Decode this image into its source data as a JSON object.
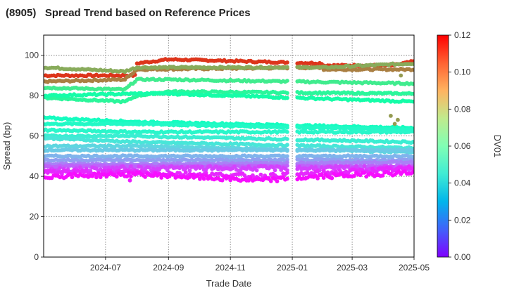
{
  "chart_data": {
    "type": "scatter",
    "title": "(8905)   Spread Trend based on Reference Prices",
    "xlabel": "Trade Date",
    "ylabel": "Spread (bp)",
    "colorbar_label": "DV01",
    "x_range": [
      "2024-05-01",
      "2025-05-01"
    ],
    "ylim": [
      0,
      110
    ],
    "y_ticks": [
      0,
      20,
      40,
      60,
      80,
      100
    ],
    "x_ticks": [
      "2024-07",
      "2024-09",
      "2024-11",
      "2025-01",
      "2025-03",
      "2025-05"
    ],
    "colorbar_range": [
      0.0,
      0.12
    ],
    "colorbar_ticks": [
      "0.00",
      "0.02",
      "0.04",
      "0.06",
      "0.08",
      "0.10",
      "0.12"
    ],
    "colormap": "rainbow",
    "grid": true,
    "gaps": [
      [
        "2024-12-29",
        "2025-01-05"
      ]
    ],
    "series": [
      {
        "dv01": 0.112,
        "points": [
          [
            "2024-05-01",
            90
          ],
          [
            "2024-07-31",
            90
          ],
          [
            "2024-08-01",
            96
          ],
          [
            "2024-09-01",
            98
          ],
          [
            "2025-01-31",
            96
          ],
          [
            "2025-02-01",
            95
          ],
          [
            "2025-04-10",
            95
          ],
          [
            "2025-05-01",
            97
          ]
        ]
      },
      {
        "dv01": 0.1,
        "points": [
          [
            "2024-05-01",
            87
          ],
          [
            "2024-07-20",
            88
          ],
          [
            "2024-08-01",
            93
          ],
          [
            "2025-01-31",
            94
          ],
          [
            "2025-02-01",
            93
          ],
          [
            "2025-05-01",
            93
          ]
        ]
      },
      {
        "dv01": 0.092,
        "points": [
          [
            "2024-05-01",
            94
          ],
          [
            "2024-07-20",
            92
          ],
          [
            "2024-08-01",
            94
          ],
          [
            "2025-02-01",
            94
          ],
          [
            "2025-05-01",
            96
          ]
        ]
      },
      {
        "dv01": 0.075,
        "points": [
          [
            "2024-05-01",
            84
          ],
          [
            "2024-07-20",
            83
          ],
          [
            "2024-08-01",
            88
          ],
          [
            "2024-09-01",
            88
          ],
          [
            "2025-05-01",
            86
          ]
        ]
      },
      {
        "dv01": 0.07,
        "points": [
          [
            "2024-05-01",
            79
          ],
          [
            "2024-07-20",
            77
          ],
          [
            "2024-08-01",
            80
          ],
          [
            "2024-09-01",
            82
          ],
          [
            "2025-05-01",
            81
          ]
        ]
      },
      {
        "dv01": 0.065,
        "points": [
          [
            "2024-05-01",
            80
          ],
          [
            "2024-08-01",
            81
          ],
          [
            "2024-09-01",
            81
          ],
          [
            "2025-05-01",
            77
          ]
        ]
      },
      {
        "dv01": 0.055,
        "points": [
          [
            "2024-05-01",
            69
          ],
          [
            "2024-08-01",
            67
          ],
          [
            "2025-05-01",
            64
          ]
        ]
      },
      {
        "dv01": 0.052,
        "points": [
          [
            "2024-05-01",
            66
          ],
          [
            "2024-08-01",
            66
          ],
          [
            "2025-05-01",
            63
          ]
        ]
      },
      {
        "dv01": 0.05,
        "points": [
          [
            "2024-05-01",
            63
          ],
          [
            "2024-08-01",
            62
          ],
          [
            "2025-05-01",
            62
          ]
        ]
      },
      {
        "dv01": 0.046,
        "points": [
          [
            "2024-05-01",
            60
          ],
          [
            "2024-08-01",
            60
          ],
          [
            "2025-05-01",
            57
          ]
        ]
      },
      {
        "dv01": 0.043,
        "points": [
          [
            "2024-05-01",
            59
          ],
          [
            "2024-08-01",
            57
          ],
          [
            "2025-05-01",
            54
          ]
        ]
      },
      {
        "dv01": 0.038,
        "points": [
          [
            "2024-05-01",
            55
          ],
          [
            "2024-08-01",
            55
          ],
          [
            "2025-05-01",
            52
          ]
        ]
      },
      {
        "dv01": 0.035,
        "points": [
          [
            "2024-05-01",
            53
          ],
          [
            "2024-08-01",
            53
          ],
          [
            "2025-05-01",
            53
          ]
        ]
      },
      {
        "dv01": 0.03,
        "points": [
          [
            "2024-05-01",
            50
          ],
          [
            "2024-08-01",
            50
          ],
          [
            "2025-05-01",
            50
          ]
        ]
      },
      {
        "dv01": 0.026,
        "points": [
          [
            "2024-05-01",
            48
          ],
          [
            "2024-08-01",
            48
          ],
          [
            "2025-05-01",
            48
          ]
        ]
      },
      {
        "dv01": 0.02,
        "points": [
          [
            "2024-05-01",
            46
          ],
          [
            "2024-08-01",
            46
          ],
          [
            "2025-05-01",
            47
          ]
        ]
      },
      {
        "dv01": 0.015,
        "points": [
          [
            "2024-05-01",
            45
          ],
          [
            "2024-08-01",
            45
          ],
          [
            "2025-05-01",
            45
          ]
        ]
      },
      {
        "dv01": 0.01,
        "points": [
          [
            "2024-05-01",
            43
          ],
          [
            "2024-08-01",
            44
          ],
          [
            "2025-05-01",
            44
          ]
        ]
      },
      {
        "dv01": 0.006,
        "points": [
          [
            "2024-05-01",
            42
          ],
          [
            "2024-08-01",
            42
          ],
          [
            "2024-12-01",
            40
          ],
          [
            "2025-05-01",
            44
          ]
        ]
      },
      {
        "dv01": 0.002,
        "points": [
          [
            "2024-05-01",
            40
          ],
          [
            "2024-08-01",
            41
          ],
          [
            "2024-12-01",
            38
          ],
          [
            "2025-02-01",
            40
          ],
          [
            "2025-05-01",
            42
          ]
        ]
      }
    ],
    "outliers": [
      {
        "date": "2024-07-25",
        "value": 38,
        "dv01": 0.004
      },
      {
        "date": "2025-04-08",
        "value": 70,
        "dv01": 0.095
      },
      {
        "date": "2025-04-12",
        "value": 66,
        "dv01": 0.095
      },
      {
        "date": "2025-04-15",
        "value": 68,
        "dv01": 0.095
      },
      {
        "date": "2025-04-18",
        "value": 90,
        "dv01": 0.095
      }
    ]
  }
}
